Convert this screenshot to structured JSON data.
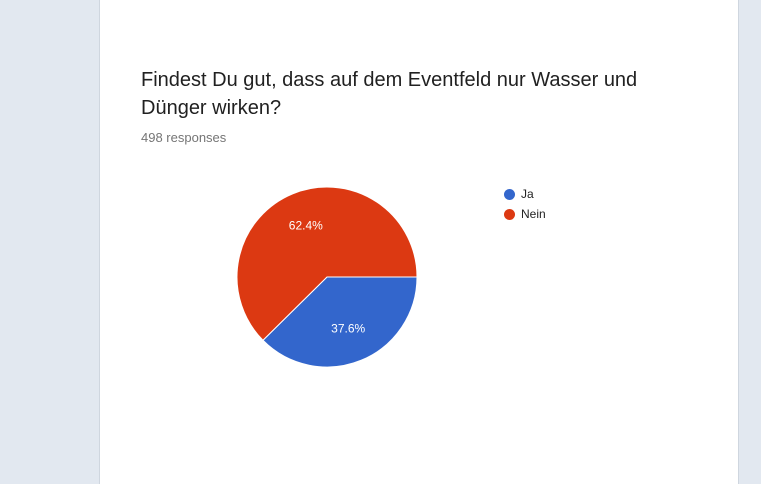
{
  "question": "Findest Du gut, dass auf dem Eventfeld nur Wasser und Dünger wirken?",
  "responses_text": "498 responses",
  "chart_data": {
    "type": "pie",
    "categories": [
      "Ja",
      "Nein"
    ],
    "values": [
      37.6,
      62.4
    ],
    "labels": [
      "37.6%",
      "62.4%"
    ],
    "colors": [
      "#3366cc",
      "#dc3912"
    ],
    "legend_position": "right"
  }
}
